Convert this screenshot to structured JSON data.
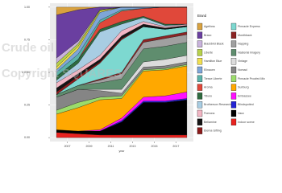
{
  "chart_data": {
    "type": "stacked-area",
    "x_label": "year",
    "y_label": "n",
    "legend_title": "Brand",
    "watermarks": [
      "Crude oil",
      "Copyright SQUARES"
    ],
    "x": [
      2006,
      2008,
      2010,
      2012,
      2014,
      2016,
      2018
    ],
    "xlim": [
      2005.4,
      2018.6
    ],
    "xticks": [
      2007,
      2009,
      2011,
      2013,
      2015,
      2017
    ],
    "ylim": [
      -0.03,
      1.03
    ],
    "yticks": [
      {
        "value": 0,
        "label": "0.00"
      },
      {
        "value": 0.25,
        "label": "0.25"
      },
      {
        "value": 0.5,
        "label": "0.50"
      },
      {
        "value": 0.75,
        "label": "0.75"
      },
      {
        "value": 1,
        "label": "1.00"
      }
    ],
    "grid": true,
    "series": [
      {
        "name": "Agelfoss",
        "color": "#d9a23f",
        "values": [
          0.06,
          0.02,
          0,
          0,
          0,
          0,
          0
        ]
      },
      {
        "name": "Bravo",
        "color": "#6a3fa0",
        "values": [
          0.33,
          0.24,
          0.02,
          0,
          0,
          0,
          0
        ]
      },
      {
        "name": "Blackbird Black",
        "color": "#c9b3dc",
        "values": [
          0.04,
          0.02,
          0,
          0,
          0,
          0,
          0
        ]
      },
      {
        "name": "Liberté",
        "color": "#b7d14a",
        "values": [
          0.03,
          0.02,
          0.01,
          0,
          0,
          0,
          0
        ]
      },
      {
        "name": "Hamilton Blue",
        "color": "#f1df4f",
        "values": [
          0.02,
          0.02,
          0.01,
          0,
          0,
          0,
          0
        ]
      },
      {
        "name": "Elinauen",
        "color": "#7ea6d8",
        "values": [
          0.02,
          0.04,
          0.06,
          0.02,
          0.01,
          0,
          0
        ]
      },
      {
        "name": "Tiesse Liberte",
        "color": "#5bb3a9",
        "values": [
          0.03,
          0.04,
          0.02,
          0.01,
          0,
          0,
          0
        ]
      },
      {
        "name": "Aroma",
        "color": "#e0483a",
        "values": [
          0,
          0,
          0.05,
          0.08,
          0.06,
          0.13,
          0.13
        ]
      },
      {
        "name": "Tiburo",
        "color": "#2f6b40",
        "values": [
          0.03,
          0.03,
          0.02,
          0.02,
          0.01,
          0.01,
          0
        ]
      },
      {
        "name": "Brotherson Research",
        "color": "#a8cde3",
        "values": [
          0.02,
          0.05,
          0.18,
          0.05,
          0.03,
          0.01,
          0
        ]
      },
      {
        "name": "Pomona",
        "color": "#f2b6c4",
        "values": [
          0.04,
          0.03,
          0.03,
          0.04,
          0.02,
          0.01,
          0.01
        ]
      },
      {
        "name": "Bellamine",
        "color": "#151515",
        "values": [
          0.03,
          0.02,
          0.02,
          0.02,
          0.02,
          0.01,
          0.01
        ]
      },
      {
        "name": "Elerna Gifting",
        "color": "#8c1c1c",
        "values": [
          0.02,
          0.02,
          0.01,
          0.01,
          0,
          0,
          0
        ]
      },
      {
        "name": "Pinnacle Express",
        "color": "#7dd8d0",
        "values": [
          0,
          0.05,
          0.12,
          0.25,
          0.1,
          0.05,
          0.04
        ]
      },
      {
        "name": "Monthback",
        "color": "#8b2424",
        "values": [
          0,
          0,
          0.01,
          0.01,
          0.02,
          0.02,
          0.02
        ]
      },
      {
        "name": "Napping",
        "color": "#a0a0a0",
        "values": [
          0,
          0,
          0.02,
          0.04,
          0.05,
          0.06,
          0.06
        ]
      },
      {
        "name": "Nasterial Imagery",
        "color": "#5f8d6e",
        "values": [
          0.02,
          0.03,
          0.05,
          0.08,
          0.1,
          0.1,
          0.1
        ]
      },
      {
        "name": "Vintage",
        "color": "#dcdcdc",
        "values": [
          0,
          0,
          0.01,
          0.03,
          0.04,
          0.05,
          0.05
        ]
      },
      {
        "name": "Nomad",
        "color": "#858585",
        "values": [
          0.1,
          0.1,
          0.05,
          0.02,
          0.02,
          0.02,
          0.02
        ]
      },
      {
        "name": "Pinnacle Proofed Mix",
        "color": "#9bdc6b",
        "values": [
          0.03,
          0.04,
          0.02,
          0.02,
          0.01,
          0.01,
          0.01
        ]
      },
      {
        "name": "Sunburg",
        "color": "#ffa800",
        "values": [
          0.12,
          0.18,
          0.23,
          0.15,
          0.2,
          0.2,
          0.2
        ]
      },
      {
        "name": "Embassee",
        "color": "#ff10ff",
        "values": [
          0,
          0,
          0.01,
          0.02,
          0.03,
          0.04,
          0.05
        ]
      },
      {
        "name": "Blindspotted",
        "color": "#2424d4",
        "values": [
          0,
          0,
          0,
          0.01,
          0.01,
          0.01,
          0.01
        ]
      },
      {
        "name": "Vaux",
        "color": "#000000",
        "values": [
          0.02,
          0.02,
          0.03,
          0.1,
          0.25,
          0.25,
          0.27
        ]
      },
      {
        "name": "Indoor scene",
        "color": "#e8231f",
        "values": [
          0.04,
          0.03,
          0.02,
          0.02,
          0.02,
          0.02,
          0.02
        ]
      }
    ]
  }
}
